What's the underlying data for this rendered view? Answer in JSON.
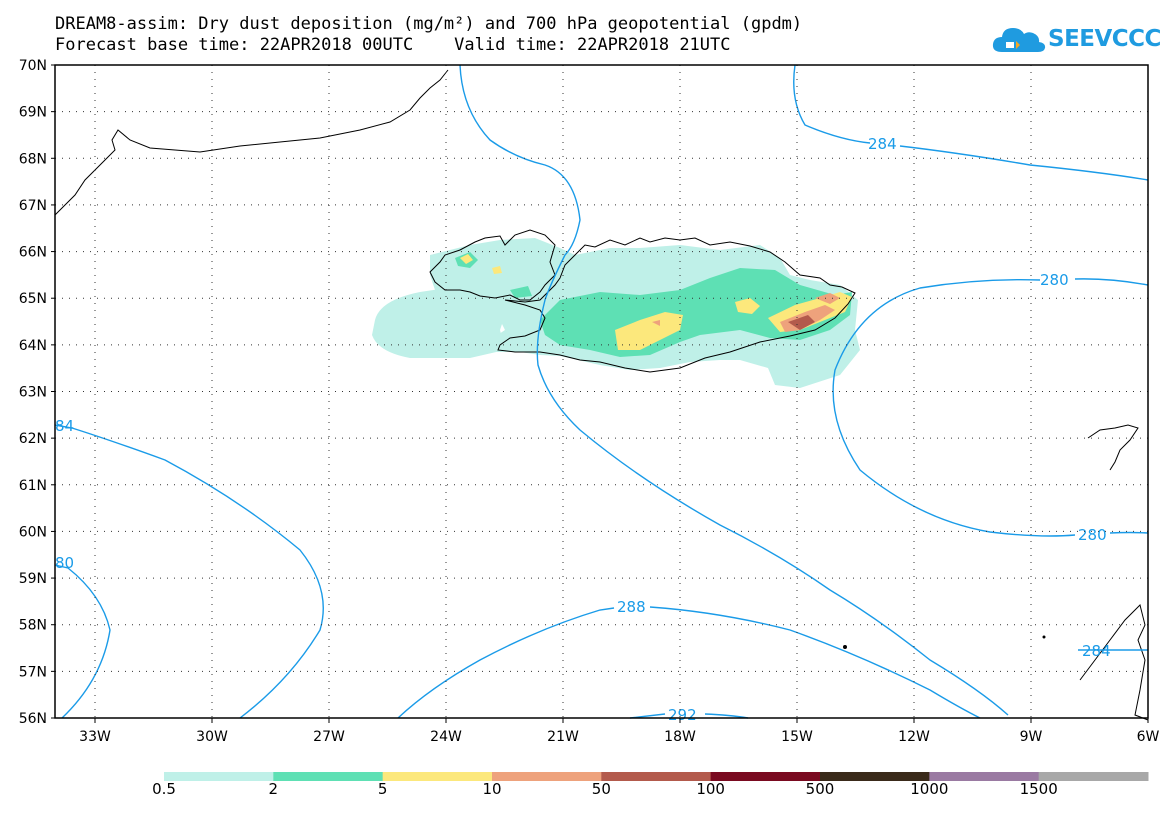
{
  "title": {
    "line1": "DREAM8-assim: Dry dust deposition (mg/m²) and 700 hPa geopotential (gpdm)",
    "line2": "Forecast base time: 22APR2018 00UTC    Valid time: 22APR2018 21UTC"
  },
  "logo": {
    "text": "SEEVCCC",
    "icon": "cloud-icon",
    "color": "#1f9be0"
  },
  "axes": {
    "lat_labels": [
      "70N",
      "69N",
      "68N",
      "67N",
      "66N",
      "65N",
      "64N",
      "63N",
      "62N",
      "61N",
      "60N",
      "59N",
      "58N",
      "57N",
      "56N"
    ],
    "lon_labels": [
      "33W",
      "30W",
      "27W",
      "24W",
      "21W",
      "18W",
      "15W",
      "12W",
      "9W",
      "6W"
    ],
    "grid": "dotted"
  },
  "contours": {
    "color": "#1a9be8",
    "labels": [
      "284",
      "280",
      "84",
      "80",
      "288",
      "280",
      "292",
      "284"
    ]
  },
  "legend": {
    "colors": [
      "#bff0e8",
      "#5ee0b4",
      "#fce87c",
      "#eea27c",
      "#b35a4c",
      "#7a0a20",
      "#3a2a1a",
      "#9a7aa2",
      "#a8a8a8"
    ],
    "labels": [
      "0.5",
      "2",
      "5",
      "10",
      "50",
      "100",
      "500",
      "1000",
      "1500"
    ]
  }
}
